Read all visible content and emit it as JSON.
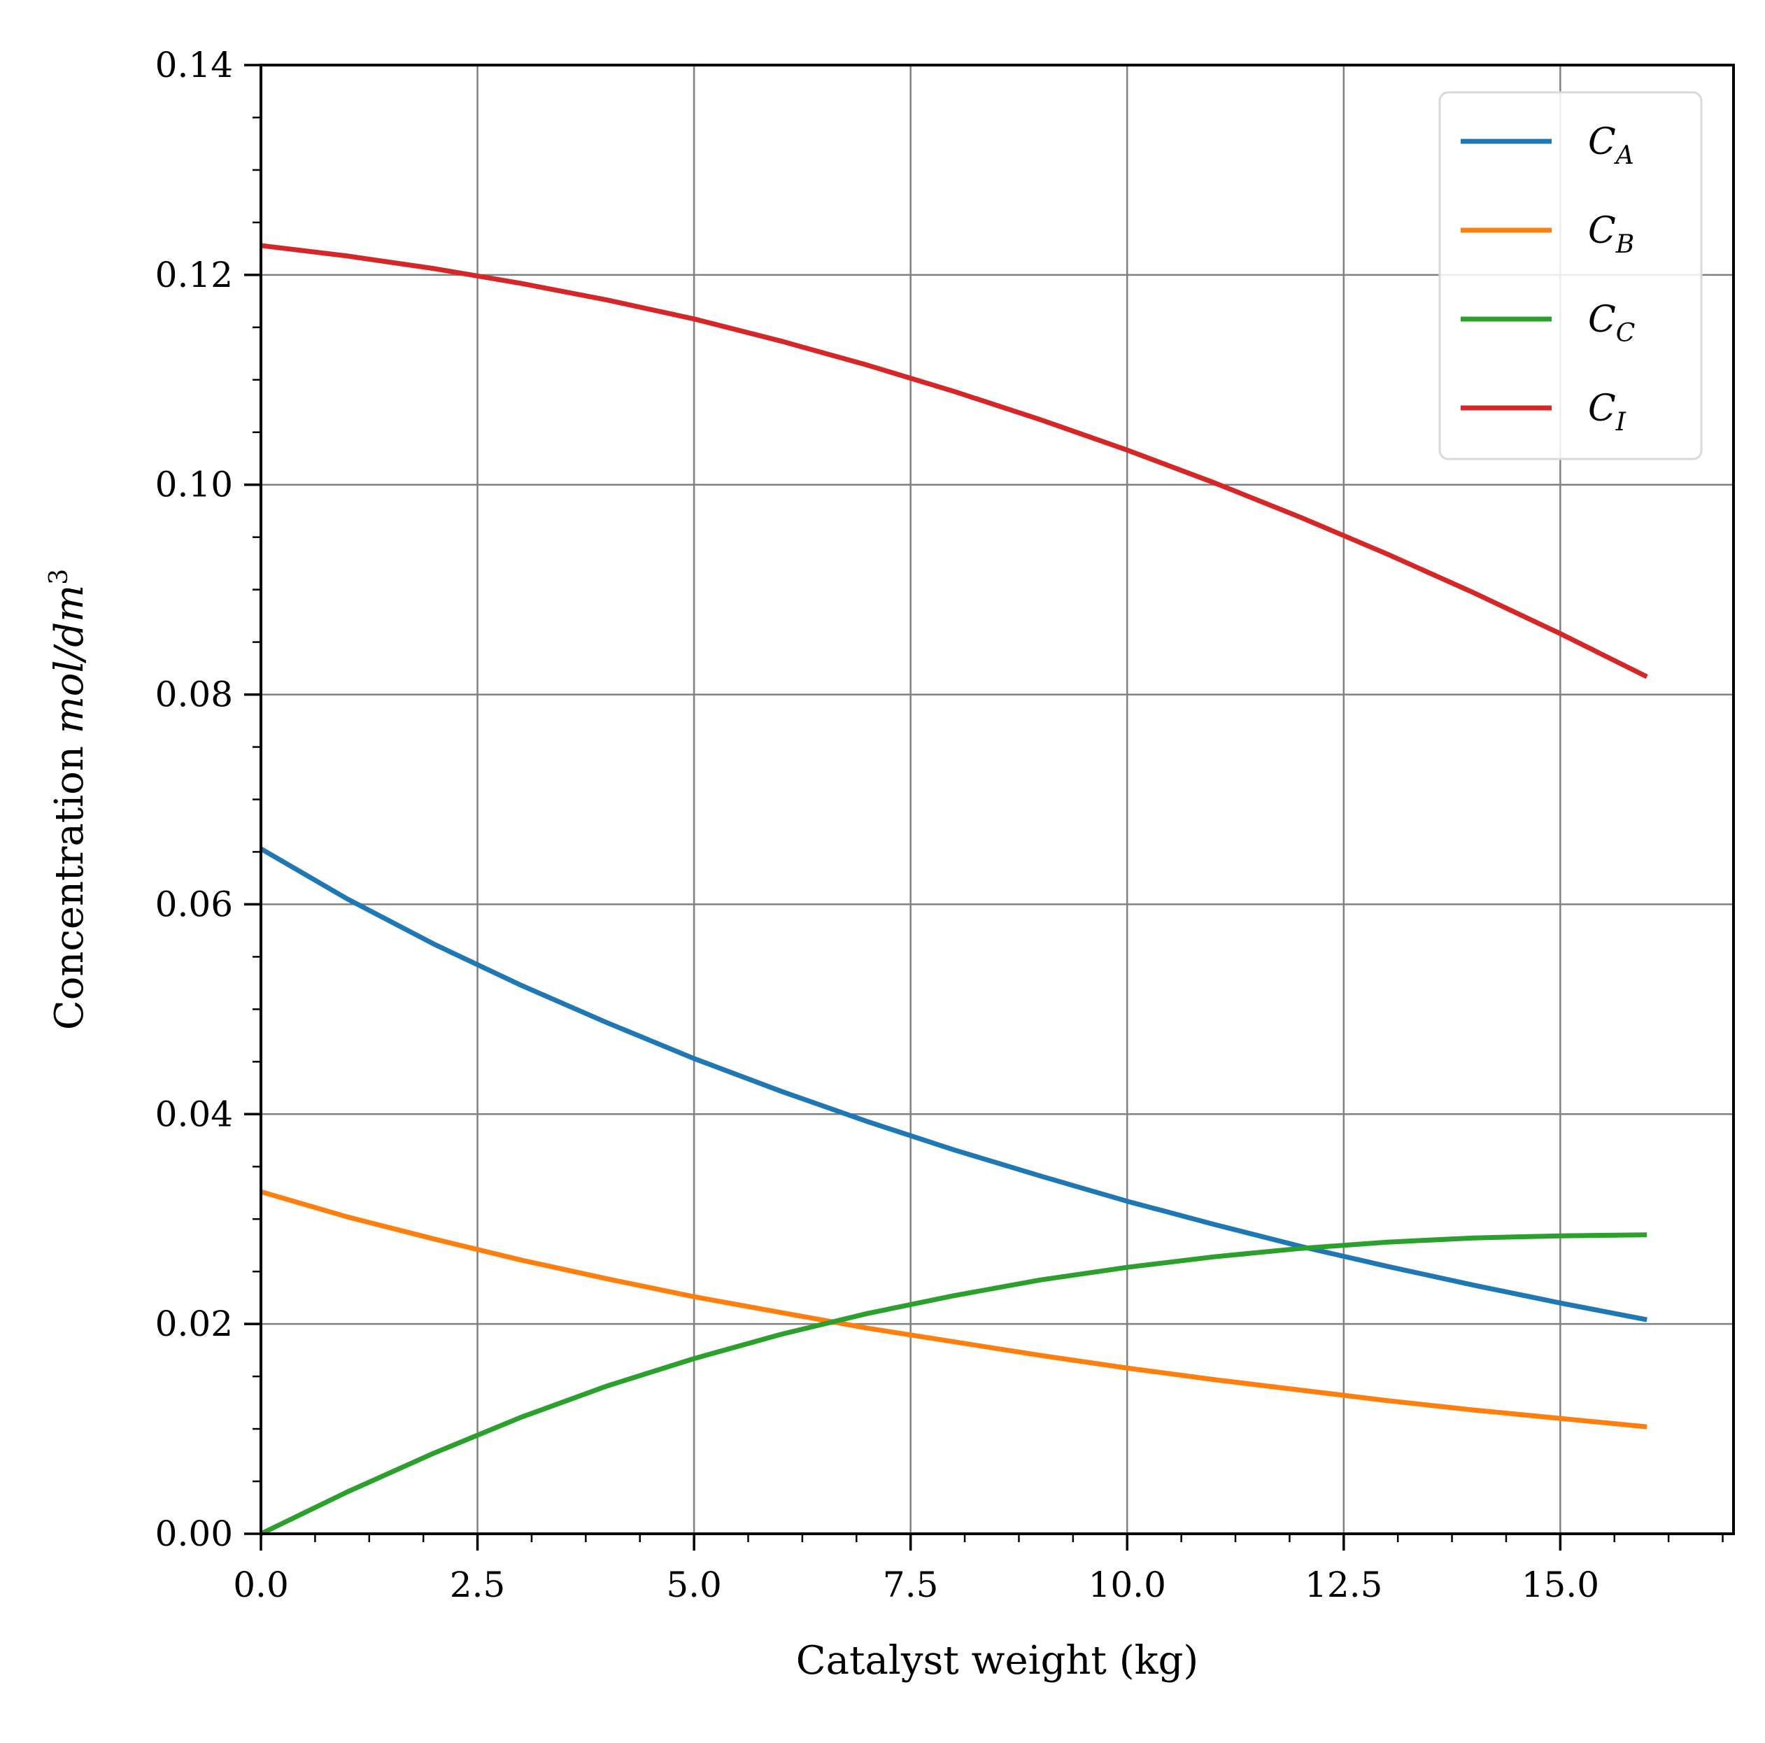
{
  "chart_data": {
    "type": "line",
    "title": "",
    "xlabel": "Catalyst weight (kg)",
    "ylabel_prefix": "Concentration ",
    "ylabel_units": "mol/dm",
    "ylabel_exponent": "3",
    "xlim": [
      0,
      17
    ],
    "ylim": [
      0,
      0.14
    ],
    "x_ticks": [
      "0.0",
      "2.5",
      "5.0",
      "7.5",
      "10.0",
      "12.5",
      "15.0"
    ],
    "y_ticks": [
      "0.00",
      "0.02",
      "0.04",
      "0.06",
      "0.08",
      "0.10",
      "0.12",
      "0.14"
    ],
    "grid": true,
    "legend_position": "top-right",
    "x": [
      0,
      1,
      2,
      3,
      4,
      5,
      6,
      7,
      8,
      9,
      10,
      11,
      12,
      13,
      14,
      15,
      16
    ],
    "series": [
      {
        "name": "C",
        "sub": "A",
        "color": "#1f77b4",
        "values": [
          0.0653,
          0.0605,
          0.0562,
          0.0523,
          0.0487,
          0.0453,
          0.0422,
          0.0393,
          0.0366,
          0.0341,
          0.0317,
          0.0295,
          0.0274,
          0.0255,
          0.0237,
          0.022,
          0.0204
        ]
      },
      {
        "name": "C",
        "sub": "B",
        "color": "#ff7f0e",
        "values": [
          0.0326,
          0.0302,
          0.0281,
          0.0261,
          0.0243,
          0.0226,
          0.0211,
          0.0196,
          0.0183,
          0.017,
          0.0158,
          0.0147,
          0.0137,
          0.0127,
          0.0118,
          0.011,
          0.0102
        ]
      },
      {
        "name": "C",
        "sub": "C",
        "color": "#2ca02c",
        "values": [
          0.0,
          0.004,
          0.0077,
          0.0111,
          0.0141,
          0.0167,
          0.019,
          0.021,
          0.0227,
          0.0242,
          0.0254,
          0.0264,
          0.0272,
          0.0278,
          0.0282,
          0.0284,
          0.0285
        ]
      },
      {
        "name": "C",
        "sub": "I",
        "color": "#d62728",
        "values": [
          0.1228,
          0.1218,
          0.1206,
          0.1192,
          0.1176,
          0.1158,
          0.1137,
          0.1114,
          0.1089,
          0.1062,
          0.1033,
          0.1002,
          0.0969,
          0.0934,
          0.0897,
          0.0858,
          0.0817
        ]
      }
    ]
  }
}
